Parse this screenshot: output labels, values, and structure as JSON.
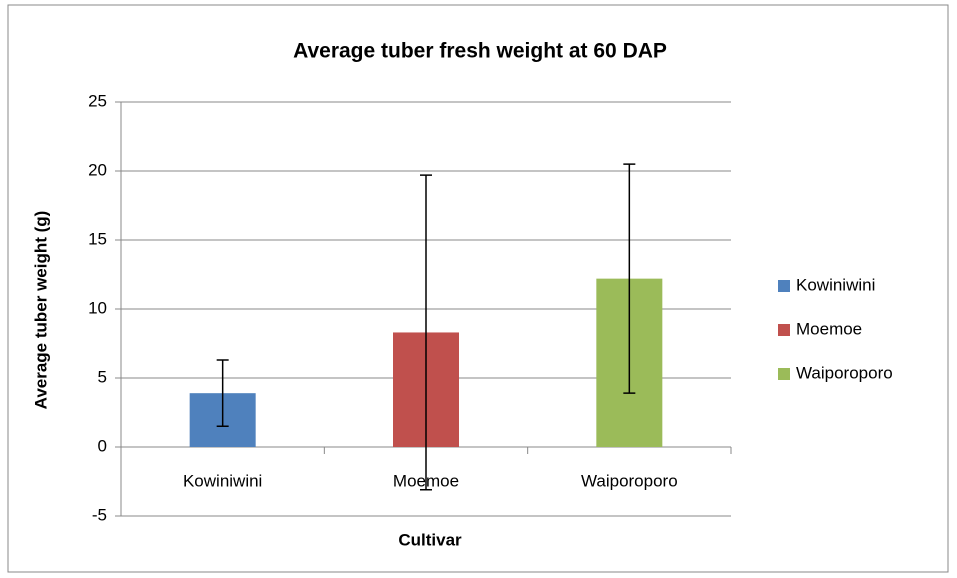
{
  "chart_data": {
    "type": "bar",
    "title": "Average tuber fresh weight at 60 DAP",
    "x_label": "Cultivar",
    "y_label": "Average tuber weight (g)",
    "categories": [
      "Kowiniwini",
      "Moemoe",
      "Waiporoporo"
    ],
    "values": [
      3.9,
      8.3,
      12.2
    ],
    "errors": [
      2.4,
      11.4,
      8.3
    ],
    "colors": [
      "#4f81bd",
      "#c0504d",
      "#9bbb59"
    ],
    "ylim": [
      -5,
      25
    ],
    "yticks": [
      -5,
      0,
      5,
      10,
      15,
      20,
      25
    ],
    "grid": true,
    "legend": "right"
  }
}
